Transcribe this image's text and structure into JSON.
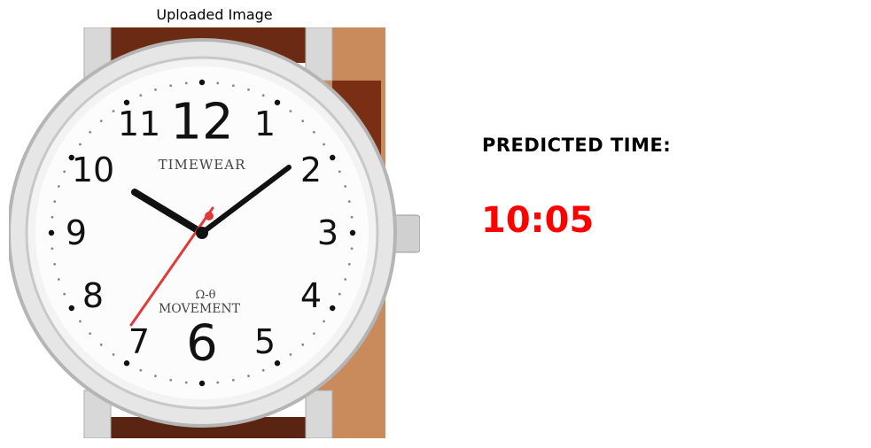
{
  "image_title": "Uploaded Image",
  "watch": {
    "brand": "TIMEWEAR",
    "movement_line1": "Ω-θ",
    "movement_line2": "MOVEMENT",
    "numerals": [
      "12",
      "1",
      "2",
      "3",
      "4",
      "5",
      "6",
      "7",
      "8",
      "9",
      "10",
      "11"
    ],
    "strap_color": "#6b2a14",
    "second_hand_color": "#e03a3a"
  },
  "prediction": {
    "label": "PREDICTED TIME:",
    "value": "10:05",
    "value_color": "#ff0000"
  }
}
